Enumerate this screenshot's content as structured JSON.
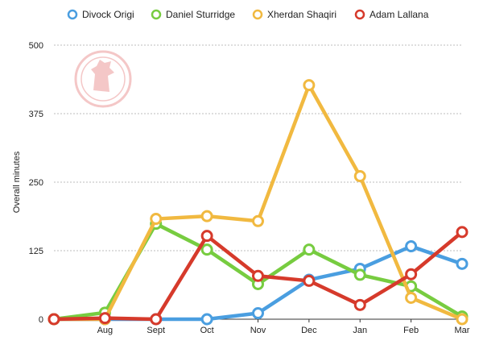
{
  "chart_data": {
    "type": "line",
    "categories": [
      "",
      "Aug",
      "Sept",
      "Oct",
      "Nov",
      "Dec",
      "Jan",
      "Feb",
      "Mar"
    ],
    "series": [
      {
        "name": "Divock Origi",
        "color": "#4a9ee0",
        "values": [
          0,
          0,
          0,
          0,
          11,
          72,
          92,
          133,
          101
        ]
      },
      {
        "name": "Daniel Sturridge",
        "color": "#77cc40",
        "values": [
          0,
          12,
          174,
          127,
          64,
          127,
          81,
          60,
          5
        ]
      },
      {
        "name": "Xherdan Shaqiri",
        "color": "#f1b940",
        "values": [
          0,
          0,
          183,
          188,
          179,
          427,
          261,
          39,
          0
        ]
      },
      {
        "name": "Adam Lallana",
        "color": "#d63a2b",
        "values": [
          0,
          2,
          0,
          152,
          79,
          70,
          26,
          82,
          159
        ]
      }
    ],
    "title": "",
    "xlabel": "",
    "ylabel": "Overall minutes",
    "yticks": [
      0,
      125,
      250,
      375,
      500
    ],
    "ylim": [
      0,
      500
    ],
    "grid": true,
    "legend_position": "top",
    "logo": "liverpool-crest-watermark"
  }
}
